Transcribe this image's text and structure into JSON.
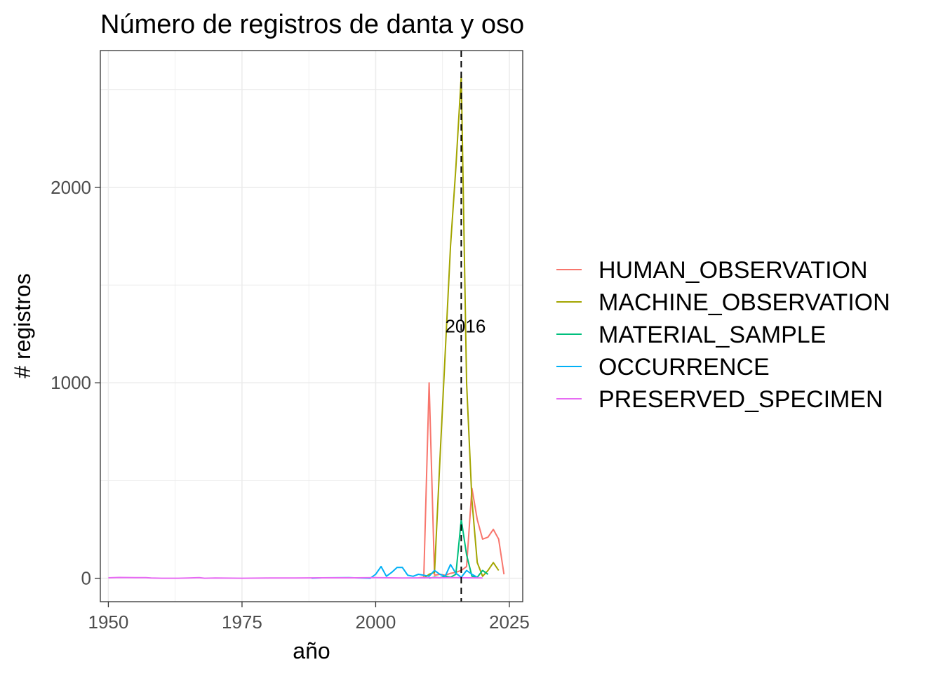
{
  "chart_data": {
    "type": "line",
    "title": "Número de registros de danta y oso",
    "xlabel": "año",
    "ylabel": "# registros",
    "xlim": [
      1948.5,
      2027.5
    ],
    "ylim": [
      -120,
      2700
    ],
    "x_ticks": [
      1950,
      1975,
      2000,
      2025
    ],
    "y_ticks": [
      0,
      1000,
      2000
    ],
    "grid": true,
    "legend_position": "right",
    "vline": {
      "x": 2016,
      "label": "2016",
      "label_y": 1290
    },
    "series": [
      {
        "name": "HUMAN_OBSERVATION",
        "color": "#F8766D",
        "x": [
          2008,
          2009,
          2010,
          2011,
          2012,
          2013,
          2014,
          2015,
          2016,
          2017,
          2018,
          2019,
          2020,
          2021,
          2022,
          2023,
          2024
        ],
        "y": [
          2,
          5,
          1000,
          15,
          20,
          15,
          25,
          30,
          40,
          60,
          460,
          300,
          200,
          210,
          250,
          200,
          20
        ]
      },
      {
        "name": "MACHINE_OBSERVATION",
        "color": "#A3A500",
        "x": [
          2009,
          2010,
          2011,
          2012,
          2013,
          2014,
          2015,
          2016,
          2017,
          2018,
          2019,
          2020,
          2021,
          2022,
          2023
        ],
        "y": [
          0,
          20,
          30,
          600,
          1150,
          1700,
          2100,
          2570,
          1000,
          400,
          80,
          10,
          40,
          80,
          40
        ]
      },
      {
        "name": "MATERIAL_SAMPLE",
        "color": "#00BF7D",
        "x": [
          2010,
          2011,
          2012,
          2013,
          2014,
          2015,
          2016,
          2017,
          2018,
          2019,
          2020,
          2021
        ],
        "y": [
          0,
          5,
          2,
          10,
          5,
          20,
          300,
          120,
          10,
          5,
          40,
          20
        ]
      },
      {
        "name": "OCCURRENCE",
        "color": "#00B0F6",
        "x": [
          1988,
          1990,
          1995,
          1999,
          2000,
          2001,
          2002,
          2003,
          2004,
          2005,
          2006,
          2007,
          2008,
          2009,
          2010,
          2011,
          2012,
          2013,
          2014,
          2015,
          2016,
          2017,
          2018,
          2019
        ],
        "y": [
          0,
          2,
          3,
          0,
          20,
          60,
          10,
          30,
          55,
          55,
          15,
          10,
          20,
          15,
          10,
          40,
          20,
          10,
          70,
          25,
          5,
          40,
          20,
          5
        ]
      },
      {
        "name": "PRESERVED_SPECIMEN",
        "color": "#E76BF3",
        "x": [
          1950,
          1952,
          1955,
          1957,
          1958,
          1960,
          1963,
          1965,
          1967,
          1968,
          1970,
          1975,
          1980,
          1985,
          1990,
          1995,
          2000,
          2005,
          2010,
          2015,
          2020
        ],
        "y": [
          2,
          4,
          3,
          3,
          1,
          0,
          0,
          1,
          3,
          0,
          1,
          0,
          1,
          1,
          2,
          2,
          3,
          1,
          2,
          3,
          1
        ]
      }
    ]
  }
}
